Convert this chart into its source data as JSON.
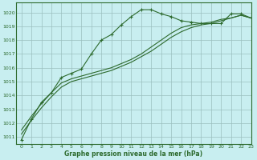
{
  "title": "Graphe pression niveau de la mer (hPa)",
  "bg_color": "#c8eef0",
  "grid_color": "#9bbfbf",
  "line_color": "#2d6a2d",
  "xlim": [
    -0.5,
    23
  ],
  "ylim": [
    1010.5,
    1020.7
  ],
  "yticks": [
    1011,
    1012,
    1013,
    1014,
    1015,
    1016,
    1017,
    1018,
    1019,
    1020
  ],
  "xticks": [
    0,
    1,
    2,
    3,
    4,
    5,
    6,
    7,
    8,
    9,
    10,
    11,
    12,
    13,
    14,
    15,
    16,
    17,
    18,
    19,
    20,
    21,
    22,
    23
  ],
  "line1_x": [
    0,
    1,
    2,
    3,
    4,
    5,
    6,
    7,
    8,
    9,
    10,
    11,
    12,
    13,
    14,
    15,
    16,
    17,
    18,
    19,
    20,
    21,
    22,
    23
  ],
  "line1_y": [
    1010.8,
    1012.3,
    1013.5,
    1014.2,
    1015.3,
    1015.6,
    1015.9,
    1017.0,
    1018.0,
    1018.4,
    1019.1,
    1019.7,
    1020.2,
    1020.2,
    1019.9,
    1019.7,
    1019.4,
    1019.3,
    1019.2,
    1019.2,
    1019.2,
    1019.9,
    1019.9,
    1019.6
  ],
  "line2_x": [
    0,
    1,
    2,
    3,
    4,
    5,
    6,
    7,
    8,
    9,
    10,
    11,
    12,
    13,
    14,
    15,
    16,
    17,
    18,
    19,
    20,
    21,
    22,
    23
  ],
  "line2_y": [
    1011.5,
    1012.5,
    1013.4,
    1014.2,
    1014.9,
    1015.2,
    1015.4,
    1015.6,
    1015.8,
    1016.0,
    1016.3,
    1016.6,
    1017.0,
    1017.5,
    1018.0,
    1018.5,
    1018.9,
    1019.1,
    1019.2,
    1019.3,
    1019.5,
    1019.6,
    1019.8,
    1019.6
  ],
  "line3_x": [
    0,
    1,
    2,
    3,
    4,
    5,
    6,
    7,
    8,
    9,
    10,
    11,
    12,
    13,
    14,
    15,
    16,
    17,
    18,
    19,
    20,
    21,
    22,
    23
  ],
  "line3_y": [
    1011.2,
    1012.2,
    1013.1,
    1013.9,
    1014.6,
    1015.0,
    1015.2,
    1015.4,
    1015.6,
    1015.8,
    1016.1,
    1016.4,
    1016.8,
    1017.2,
    1017.7,
    1018.2,
    1018.6,
    1018.9,
    1019.1,
    1019.2,
    1019.4,
    1019.6,
    1019.8,
    1019.6
  ]
}
